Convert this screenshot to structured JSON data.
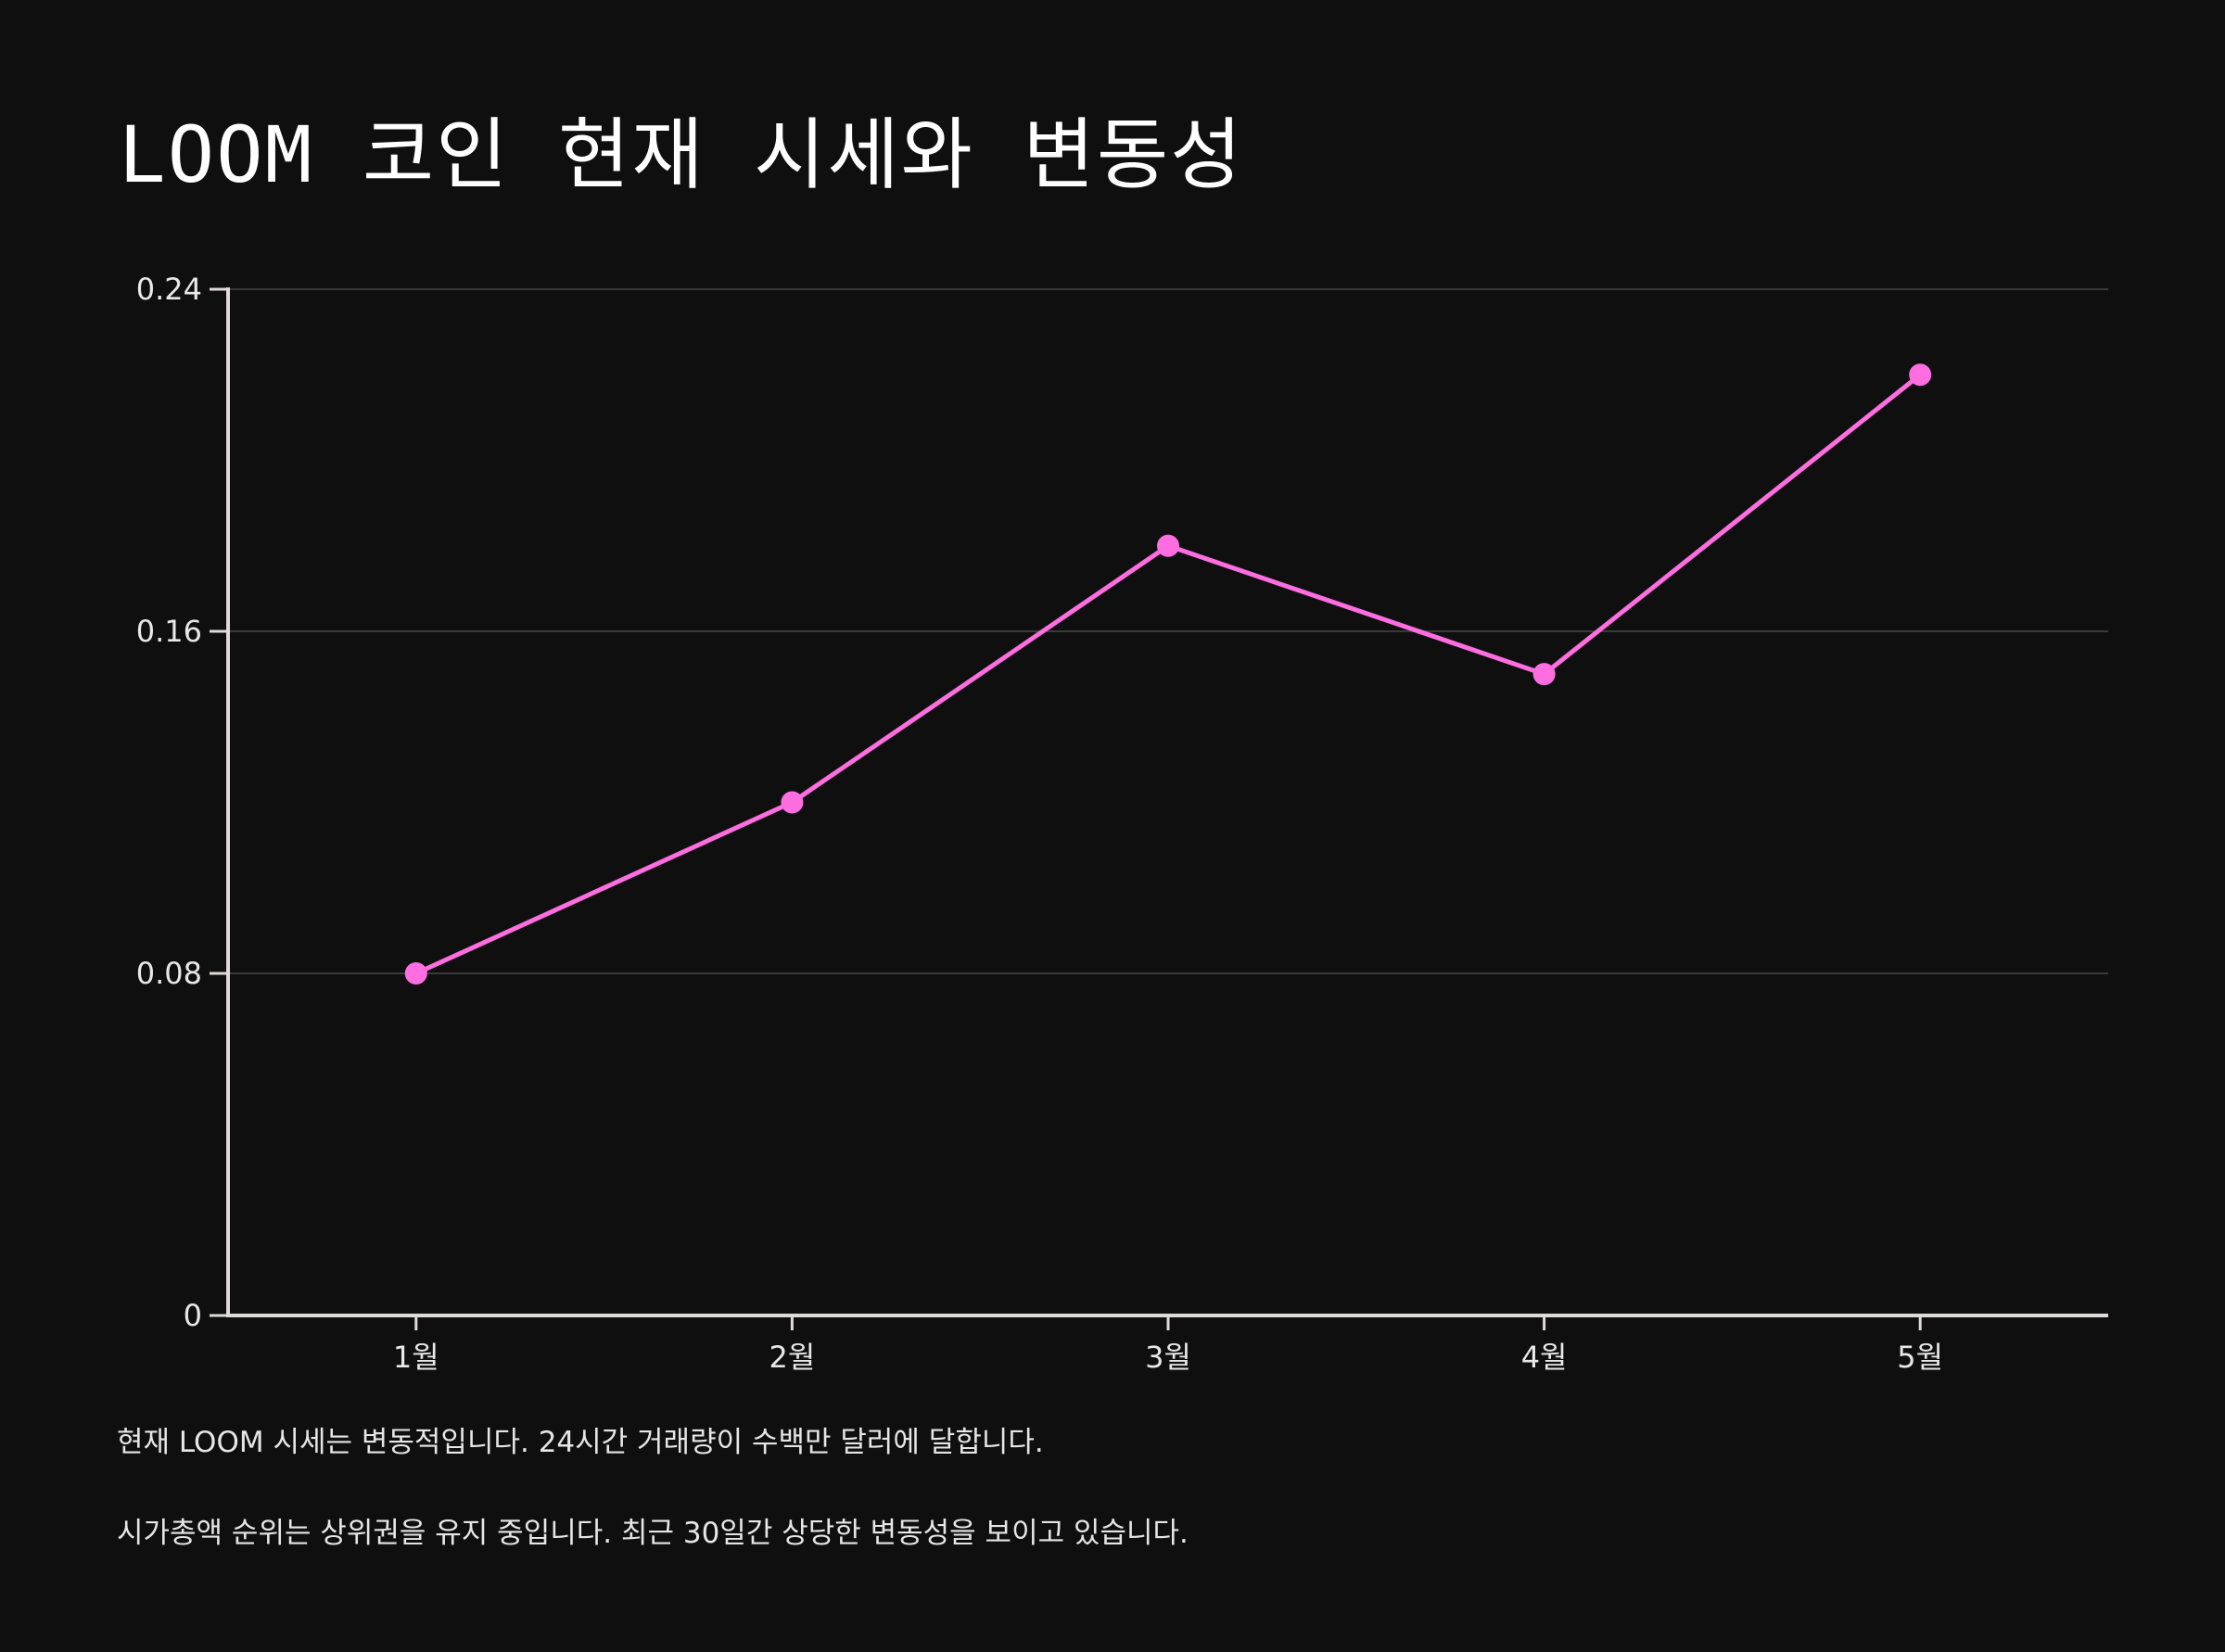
{
  "title": "LOOM 코인 현재 시세와 변동성",
  "chart_data": {
    "type": "line",
    "title": "LOOM 코인 현재 시세와 변동성",
    "categories": [
      "1월",
      "2월",
      "3월",
      "4월",
      "5월"
    ],
    "series": [
      {
        "name": "LOOM",
        "values": [
          0.08,
          0.12,
          0.18,
          0.15,
          0.22
        ]
      }
    ],
    "yticks": [
      "0",
      "0.08",
      "0.16",
      "0.24"
    ],
    "ylim": [
      0,
      0.24
    ],
    "xlabel": "",
    "ylabel": "",
    "grid": true,
    "line_color": "#ff6ee0"
  },
  "captions": [
    "현재 LOOM 시세는 변동적입니다. 24시간 거래량이 수백만 달러에 달합니다.",
    "시가총액 순위는 상위권을 유지 중입니다. 최근 30일간 상당한 변동성을 보이고 있습니다."
  ]
}
